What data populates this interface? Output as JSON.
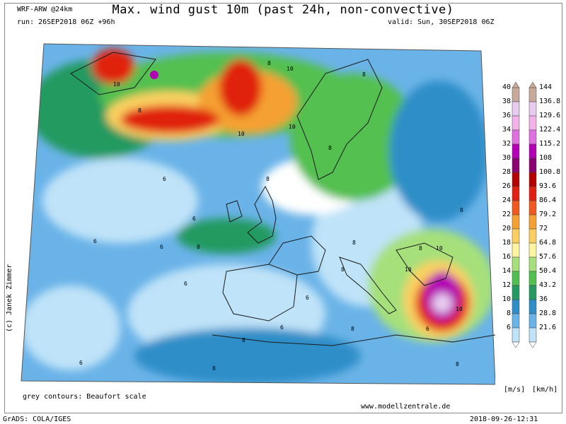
{
  "header": {
    "model": "WRF-ARW @24km",
    "title": "Max. wind gust 10m (past 24h, non-convective)",
    "run": "run: 26SEP2018 06Z +96h",
    "valid": "valid: Sun, 30SEP2018 06Z"
  },
  "colors": {
    "background": "#ffffff",
    "land_border": "#1a1a1a",
    "frame": "#888888"
  },
  "map": {
    "region": "Europe / North Atlantic / Mediterranean",
    "contour_labels": [
      "8",
      "10",
      "6",
      "8",
      "10",
      "8",
      "10",
      "8",
      "10",
      "8",
      "6",
      "8",
      "6",
      "8",
      "10",
      "8",
      "6",
      "8",
      "10",
      "6",
      "8",
      "6",
      "8",
      "10",
      "6",
      "8",
      "6",
      "8",
      "6",
      "8"
    ],
    "features": [
      {
        "name": "storm-north-atlantic",
        "color": "#d7301f"
      },
      {
        "name": "medicane-ionian",
        "color": "#a00090"
      }
    ]
  },
  "colorbar": {
    "unit_ms": "[m/s]",
    "unit_kmh": "[km/h]",
    "levels": [
      {
        "ms": "40",
        "kmh": "144",
        "color": "#c8a99a"
      },
      {
        "ms": "38",
        "kmh": "136.8",
        "color": "#e8ccf0"
      },
      {
        "ms": "36",
        "kmh": "129.6",
        "color": "#f3b2ea"
      },
      {
        "ms": "34",
        "kmh": "122.4",
        "color": "#e070e0"
      },
      {
        "ms": "32",
        "kmh": "115.2",
        "color": "#b400b4"
      },
      {
        "ms": "30",
        "kmh": "108",
        "color": "#8a0070"
      },
      {
        "ms": "28",
        "kmh": "100.8",
        "color": "#b40000"
      },
      {
        "ms": "26",
        "kmh": "93.6",
        "color": "#e02010"
      },
      {
        "ms": "24",
        "kmh": "86.4",
        "color": "#f05a20"
      },
      {
        "ms": "22",
        "kmh": "79.2",
        "color": "#f5a030"
      },
      {
        "ms": "20",
        "kmh": "72",
        "color": "#fbd060"
      },
      {
        "ms": "18",
        "kmh": "64.8",
        "color": "#fff4a0"
      },
      {
        "ms": "16",
        "kmh": "57.6",
        "color": "#a6e07a"
      },
      {
        "ms": "14",
        "kmh": "50.4",
        "color": "#52c050"
      },
      {
        "ms": "12",
        "kmh": "43.2",
        "color": "#249a60"
      },
      {
        "ms": "10",
        "kmh": "36",
        "color": "#2f8ec8"
      },
      {
        "ms": "8",
        "kmh": "28.8",
        "color": "#6ab3e8"
      },
      {
        "ms": "6",
        "kmh": "21.6",
        "color": "#bfe3f8"
      }
    ]
  },
  "footer": {
    "copyright": "(c) Janek Zimmer",
    "contours_note": "grey contours: Beaufort scale",
    "website": "www.modellzentrale.de",
    "grads": "GrADS: COLA/IGES",
    "timestamp": "2018-09-26-12:31"
  }
}
